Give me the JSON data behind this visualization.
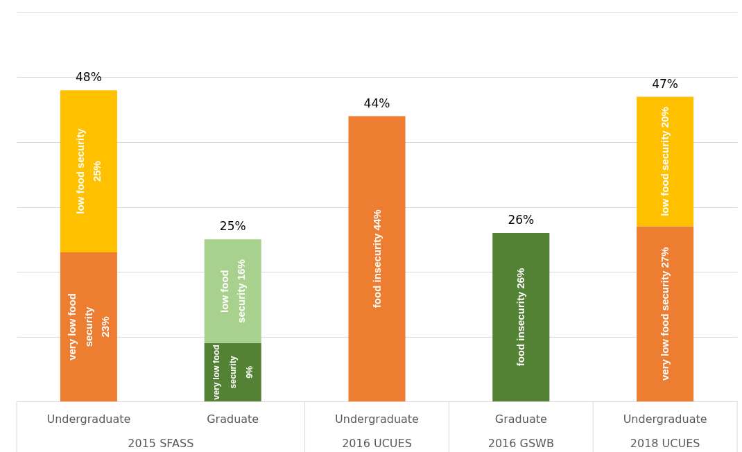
{
  "chart_data": {
    "type": "bar",
    "stacked": true,
    "categories": [
      "Undergraduate",
      "Graduate",
      "Undergraduate",
      "Graduate",
      "Undergraduate"
    ],
    "series": [
      {
        "colors": [
          "#ed7d31",
          "#548235",
          "#ed7d31",
          "#548235",
          "#ed7d31"
        ],
        "values": [
          23,
          9,
          44,
          26,
          27
        ],
        "value_labels": [
          "very low food\nsecurity\n23%",
          "very low food\nsecurity\n9%",
          "food insecurity 44%",
          "food insecurity 26%",
          "very low food security 27%"
        ]
      },
      {
        "colors": [
          "#ffc000",
          "#a9d18e",
          null,
          null,
          "#ffc000"
        ],
        "values": [
          25,
          16,
          null,
          null,
          20
        ],
        "value_labels": [
          "low food security\n25%",
          "low food\nsecurity 16%",
          null,
          null,
          "low food security 20%"
        ]
      }
    ],
    "totals": [
      "48%",
      "25%",
      "44%",
      "26%",
      "47%"
    ],
    "ylim": [
      0,
      60
    ],
    "yticks": [
      {
        "value": 0,
        "label": null
      },
      {
        "value": 10,
        "label": null
      },
      {
        "value": 20,
        "label": null
      },
      {
        "value": 30,
        "label": null
      },
      {
        "value": 40,
        "label": null
      },
      {
        "value": 50,
        "label": null
      },
      {
        "value": 60,
        "label": null
      }
    ],
    "grid": "y",
    "tick_labels": "x",
    "annotations": [
      "2015 SFASS",
      "2016 UCUES",
      "2016 GSWB",
      "2018 UCUES"
    ]
  }
}
